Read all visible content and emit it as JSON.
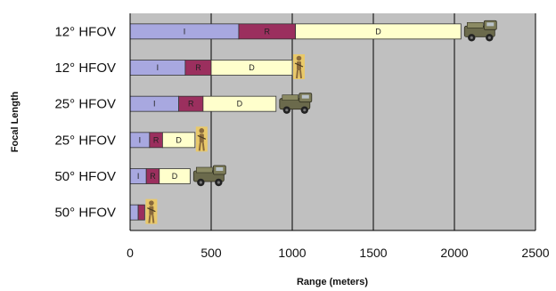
{
  "chart_data": {
    "type": "bar",
    "orientation": "horizontal",
    "stacked": true,
    "xlabel": "Range (meters)",
    "ylabel": "Focal Length",
    "xlim": [
      0,
      2500
    ],
    "xticks": [
      "0",
      "500",
      "1000",
      "1500",
      "2000",
      "2500"
    ],
    "grid": "vertical major gridlines",
    "categories": [
      "12° HFOV",
      "12° HFOV",
      "25° HFOV",
      "25° HFOV",
      "50° HFOV",
      "50° HFOV"
    ],
    "target_icons": [
      "vehicle-icon",
      "soldier-icon",
      "vehicle-icon",
      "soldier-icon",
      "vehicle-icon",
      "soldier-icon"
    ],
    "series": [
      {
        "name": "I",
        "values": [
          670,
          340,
          300,
          120,
          100,
          50
        ],
        "color": "#a8a8e0"
      },
      {
        "name": "R",
        "values": [
          350,
          160,
          150,
          80,
          80,
          40
        ],
        "color": "#9b2f5e"
      },
      {
        "name": "D",
        "values": [
          1020,
          500,
          450,
          200,
          190,
          0
        ],
        "color": "#ffffcc"
      }
    ]
  },
  "colors": {
    "plot_background": "#c0c0c0",
    "gridline": "#000000",
    "bar_outline": "#333333",
    "vehicle": "#6b6a4c",
    "soldier": "#8a6a3c",
    "target_background": "#e9c96a"
  }
}
